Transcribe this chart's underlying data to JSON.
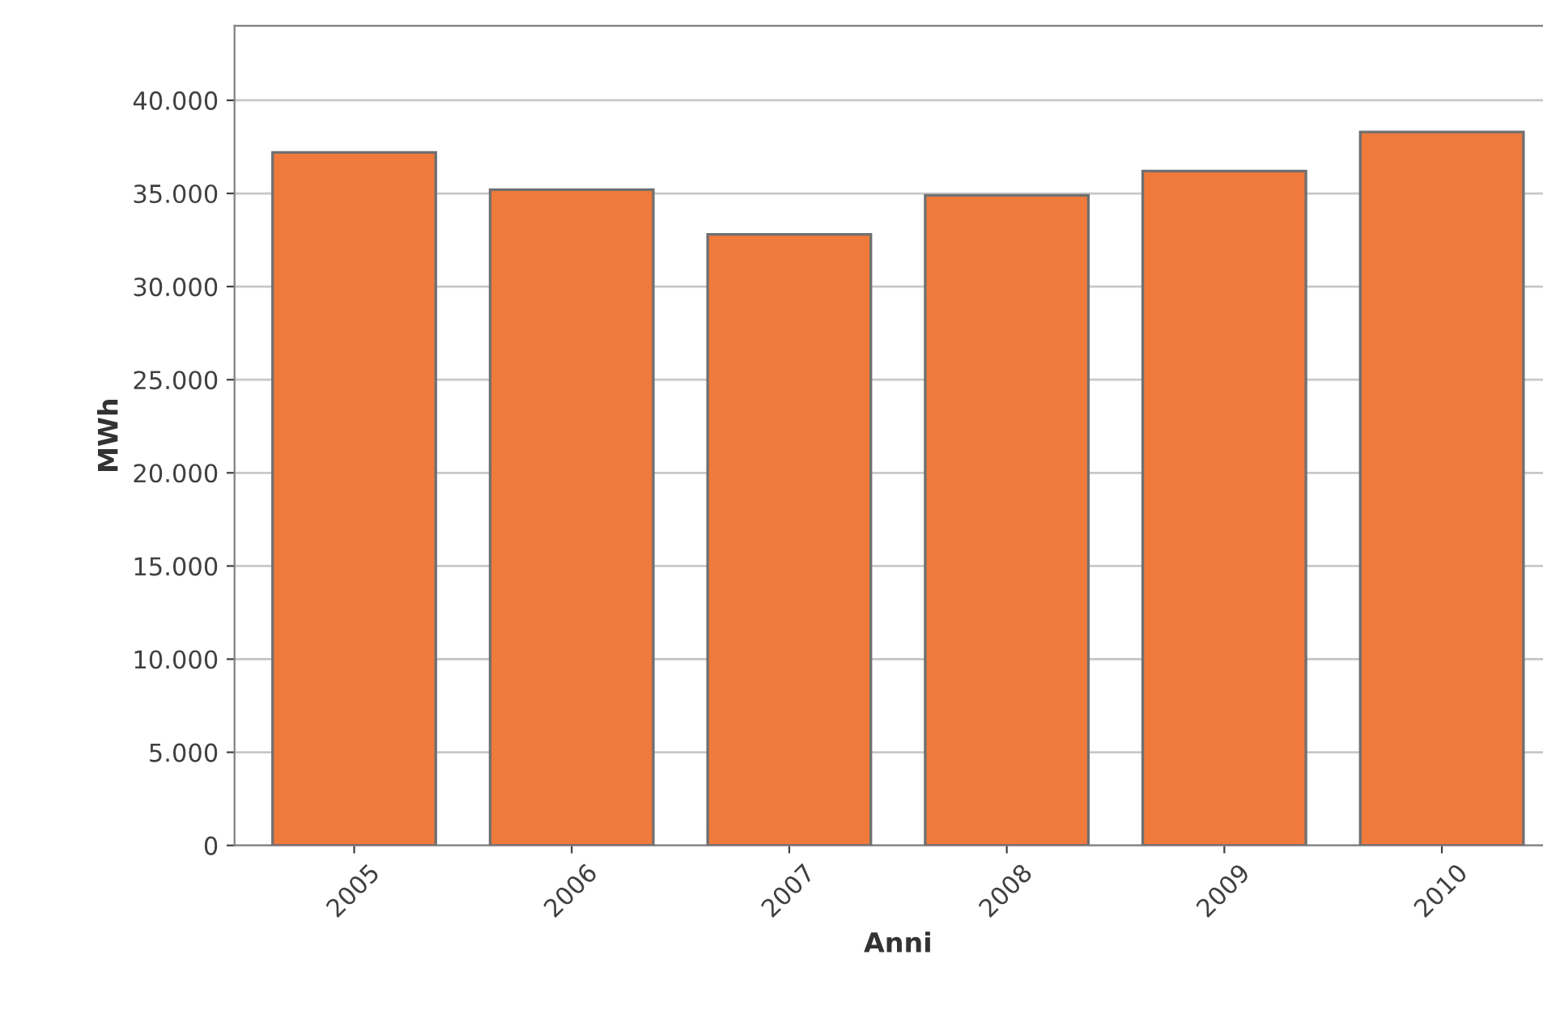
{
  "chart_data": {
    "type": "bar",
    "xlabel": "Anni",
    "ylabel": "MWh",
    "categories": [
      "2005",
      "2006",
      "2007",
      "2008",
      "2009",
      "2010"
    ],
    "values": [
      37200,
      35200,
      32800,
      34900,
      36200,
      38300
    ],
    "color": "#f07a3c",
    "ylim": [
      0,
      44000
    ],
    "yticks": [
      0,
      {
        "value": 5000,
        "label": "5.000"
      },
      {
        "value": 10000,
        "label": "10.000"
      },
      {
        "value": 15000,
        "label": "15.000"
      },
      {
        "value": 20000,
        "label": "20.000"
      },
      {
        "value": 25000,
        "label": "25.000"
      },
      {
        "value": 30000,
        "label": "30.000"
      },
      {
        "value": 35000,
        "label": "35.000"
      },
      {
        "value": 40000,
        "label": "40.000"
      }
    ],
    "grid": "y"
  }
}
